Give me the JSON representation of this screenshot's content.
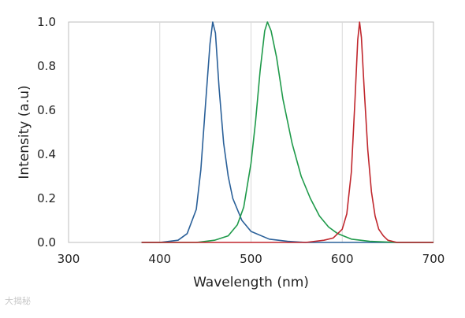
{
  "watermark": "大揭秘",
  "chart_data": {
    "type": "line",
    "title": "",
    "xlabel": "Wavelength (nm)",
    "ylabel": "Intensity (a.u)",
    "xlim": [
      300,
      700
    ],
    "ylim": [
      0,
      1.0
    ],
    "x_ticks": [
      300,
      400,
      500,
      600,
      700
    ],
    "y_ticks": [
      0.0,
      0.2,
      0.4,
      0.6,
      0.8,
      1.0
    ],
    "x_tick_labels": [
      "300",
      "400",
      "500",
      "600",
      "700"
    ],
    "y_tick_labels": [
      "0.0",
      "0.2",
      "0.4",
      "0.6",
      "0.8",
      "1.0"
    ],
    "grid": "vertical",
    "legend": "none",
    "series": [
      {
        "color": "#2a6099",
        "x": [
          380,
          400,
          420,
          430,
          440,
          445,
          450,
          455,
          458,
          461,
          465,
          470,
          475,
          480,
          490,
          500,
          520,
          540,
          560,
          600,
          650,
          700
        ],
        "y": [
          0.0,
          0.0,
          0.01,
          0.04,
          0.15,
          0.33,
          0.62,
          0.9,
          1.0,
          0.95,
          0.7,
          0.45,
          0.3,
          0.2,
          0.1,
          0.05,
          0.015,
          0.005,
          0.0,
          0.0,
          0.0,
          0.0
        ]
      },
      {
        "color": "#1f9a4a",
        "x": [
          380,
          440,
          460,
          475,
          485,
          492,
          500,
          505,
          510,
          515,
          518,
          522,
          528,
          535,
          545,
          555,
          565,
          575,
          585,
          595,
          610,
          630,
          660,
          700
        ],
        "y": [
          0.0,
          0.0,
          0.01,
          0.03,
          0.08,
          0.16,
          0.36,
          0.55,
          0.78,
          0.96,
          1.0,
          0.96,
          0.84,
          0.65,
          0.45,
          0.3,
          0.2,
          0.12,
          0.07,
          0.04,
          0.015,
          0.005,
          0.0,
          0.0
        ]
      },
      {
        "color": "#c0272d",
        "x": [
          380,
          560,
          580,
          590,
          600,
          605,
          610,
          614,
          617,
          619,
          621,
          624,
          628,
          632,
          636,
          640,
          645,
          650,
          660,
          670,
          700
        ],
        "y": [
          0.0,
          0.0,
          0.01,
          0.02,
          0.06,
          0.13,
          0.32,
          0.65,
          0.92,
          1.0,
          0.93,
          0.7,
          0.42,
          0.23,
          0.12,
          0.06,
          0.03,
          0.01,
          0.0,
          0.0,
          0.0
        ]
      }
    ]
  }
}
